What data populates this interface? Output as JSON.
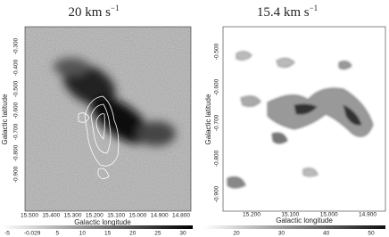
{
  "panels": [
    {
      "title": {
        "text": "20 km s",
        "sup": "−1"
      },
      "x_label": "Galactic longitude",
      "y_label": "Galactic latitude",
      "x_ticks": [
        "15.500",
        "15.400",
        "15.300",
        "15.200",
        "15.100",
        "15.000",
        "14.900",
        "14.800"
      ],
      "y_ticks": [
        "-0.300",
        "-0.400",
        "-0.500",
        "-0.600",
        "-0.700",
        "-0.800",
        "-0.900"
      ],
      "colorbar_ticks": [
        "-5",
        "-0.029",
        "5",
        "10",
        "15",
        "20",
        "25",
        "30"
      ]
    },
    {
      "title": {
        "text": "15.4 km s",
        "sup": "−1"
      },
      "x_label": "Galactic longitude",
      "y_label": "Galactic latitude",
      "x_ticks": [
        "15.200",
        "15.100",
        "15.000",
        "14.900"
      ],
      "y_ticks": [
        "-0.500",
        "-0.600",
        "-0.700",
        "-0.800",
        "-0.900"
      ],
      "colorbar_ticks": [
        "20",
        "30",
        "40",
        "50"
      ]
    }
  ]
}
